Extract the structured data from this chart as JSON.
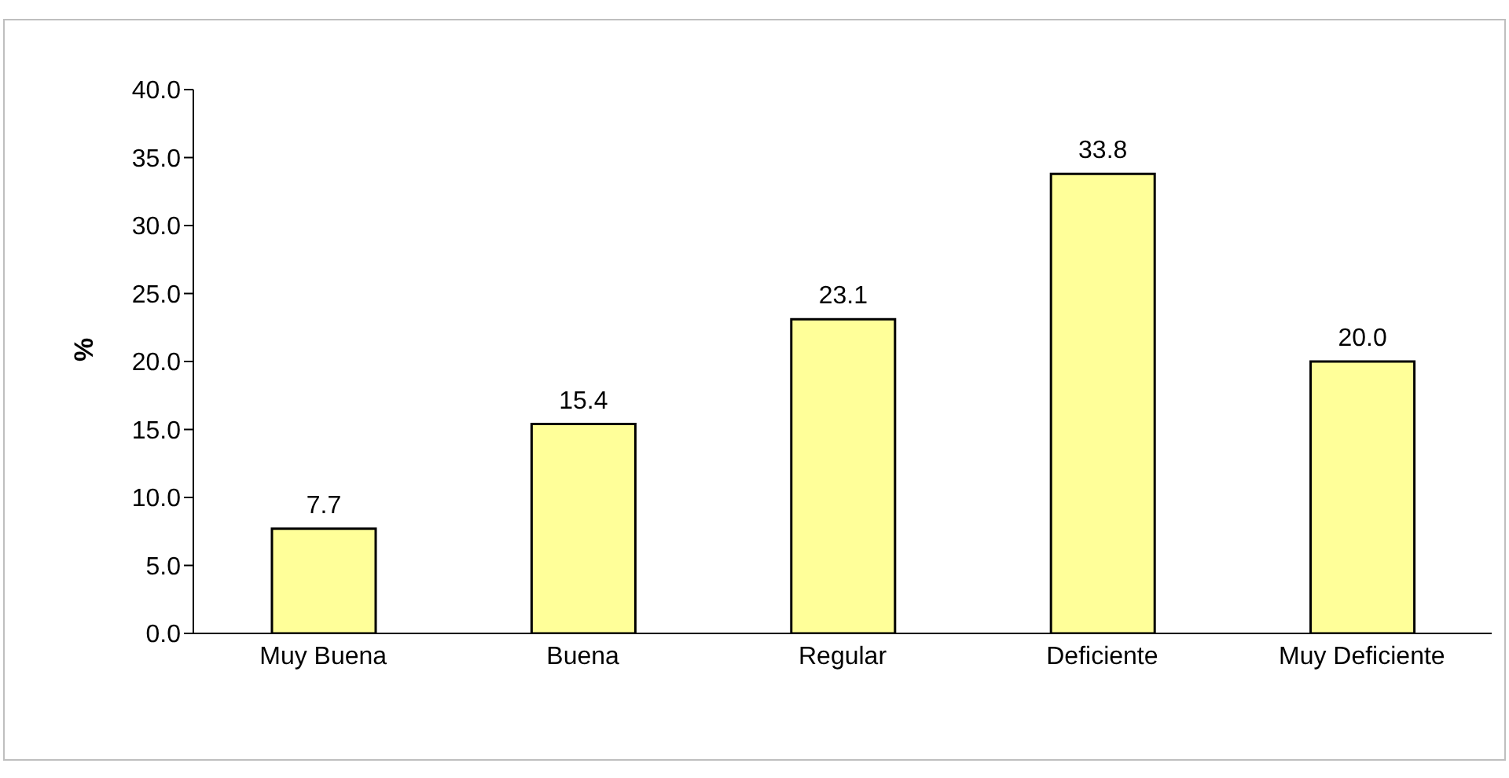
{
  "chart_data": {
    "type": "bar",
    "ylabel": "%",
    "categories": [
      "Muy Buena",
      "Buena",
      "Regular",
      "Deficiente",
      "Muy Deficiente"
    ],
    "values": [
      7.7,
      15.4,
      23.1,
      33.8,
      20.0
    ],
    "color": "#ffff99",
    "ylim": [
      0,
      40
    ],
    "yticks": [
      {
        "value": 0,
        "label": "0.0"
      },
      {
        "value": 5,
        "label": "5.0"
      },
      {
        "value": 10,
        "label": "10.0"
      },
      {
        "value": 15,
        "label": "15.0"
      },
      {
        "value": 20,
        "label": "20.0"
      },
      {
        "value": 25,
        "label": "25.0"
      },
      {
        "value": 30,
        "label": "30.0"
      },
      {
        "value": 35,
        "label": "35.0"
      },
      {
        "value": 40,
        "label": "40.0"
      }
    ],
    "value_labels": [
      "7.7",
      "15.4",
      "23.1",
      "33.8",
      "20.0"
    ],
    "grid": false,
    "legend": false
  }
}
